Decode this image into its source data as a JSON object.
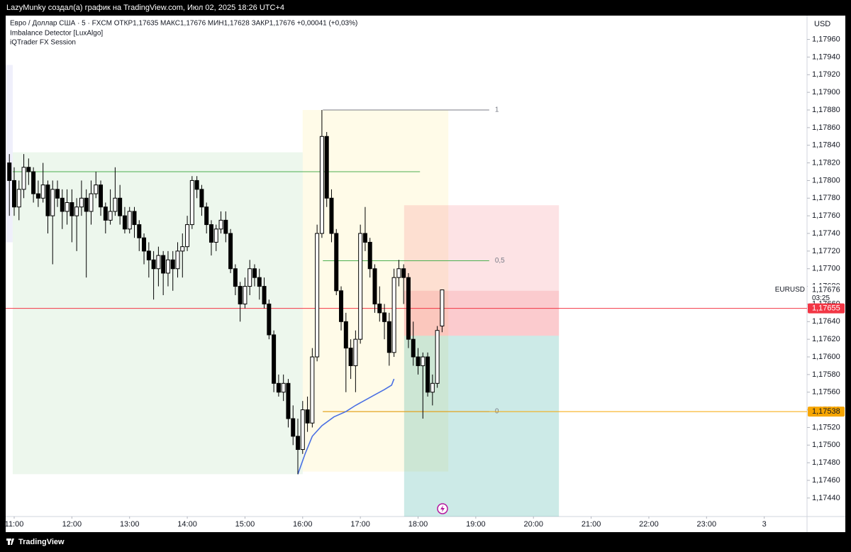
{
  "top_bar": "LazyMunky создал(а) график на TradingView.com, Июл 02, 2025 18:26 UTC+4",
  "footer": "TradingView",
  "chart_data": {
    "type": "candlestick",
    "symbol_line": "Евро / Доллар США · 5 · FXCM  ОТКР1,17635  МАКС1,17676  МИН1,17628  ЗАКР1,17676  +0,00041 (+0,03%)",
    "indicators": [
      "Imbalance Detector [LuxAlgo]",
      "iQTrader FX Session"
    ],
    "currency": "USD",
    "grid": false,
    "up_color": "#ffffff",
    "down_color": "#000000",
    "wick_color": "#000000",
    "xlim": [
      -1.77,
      164.9
    ],
    "xticks": [
      {
        "value": 0,
        "label": "11:00"
      },
      {
        "value": 12,
        "label": "12:00"
      },
      {
        "value": 24,
        "label": "13:00"
      },
      {
        "value": 36,
        "label": "14:00"
      },
      {
        "value": 48,
        "label": "15:00"
      },
      {
        "value": 60,
        "label": "16:00"
      },
      {
        "value": 72,
        "label": "17:00"
      },
      {
        "value": 84,
        "label": "18:00"
      },
      {
        "value": 96,
        "label": "19:00"
      },
      {
        "value": 108,
        "label": "20:00"
      },
      {
        "value": 120,
        "label": "21:00"
      },
      {
        "value": 132,
        "label": "22:00"
      },
      {
        "value": 144,
        "label": "23:00"
      },
      {
        "value": 156,
        "label": "3"
      }
    ],
    "ylim": [
      1.17419,
      1.17987
    ],
    "yticks": [
      {
        "value": 1.1744,
        "label": "1,17440"
      },
      {
        "value": 1.1746,
        "label": "1,17460"
      },
      {
        "value": 1.1748,
        "label": "1,17480"
      },
      {
        "value": 1.175,
        "label": "1,17500"
      },
      {
        "value": 1.1752,
        "label": "1,17520"
      },
      {
        "value": 1.1754,
        "label": "1,17540"
      },
      {
        "value": 1.1756,
        "label": "1,17560"
      },
      {
        "value": 1.1758,
        "label": "1,17580"
      },
      {
        "value": 1.176,
        "label": "1,17600"
      },
      {
        "value": 1.1762,
        "label": "1,17620"
      },
      {
        "value": 1.1764,
        "label": "1,17640"
      },
      {
        "value": 1.1766,
        "label": "1,17660"
      },
      {
        "value": 1.1768,
        "label": "1,17680"
      },
      {
        "value": 1.177,
        "label": "1,17700"
      },
      {
        "value": 1.1772,
        "label": "1,17720"
      },
      {
        "value": 1.1774,
        "label": "1,17740"
      },
      {
        "value": 1.1776,
        "label": "1,17760"
      },
      {
        "value": 1.1778,
        "label": "1,17780"
      },
      {
        "value": 1.178,
        "label": "1,17800"
      },
      {
        "value": 1.1782,
        "label": "1,17820"
      },
      {
        "value": 1.1784,
        "label": "1,17840"
      },
      {
        "value": 1.1786,
        "label": "1,17860"
      },
      {
        "value": 1.1788,
        "label": "1,17880"
      },
      {
        "value": 1.179,
        "label": "1,17900"
      },
      {
        "value": 1.1792,
        "label": "1,17920"
      },
      {
        "value": 1.1794,
        "label": "1,17940"
      },
      {
        "value": 1.1796,
        "label": "1,17960"
      }
    ],
    "boxes": [
      {
        "x": [
          -1.77,
          -0.3
        ],
        "y": [
          1.1773,
          1.17931
        ],
        "color": "rgba(120,123,220,0.12)"
      },
      {
        "x": [
          -0.3,
          60
        ],
        "y": [
          1.17467,
          1.17832
        ],
        "color": "rgba(76,175,80,0.1)"
      },
      {
        "x": [
          60,
          90.3
        ],
        "y": [
          1.1747,
          1.1788
        ],
        "color": "rgba(255,235,130,0.18)"
      },
      {
        "x": [
          81.1,
          113.3
        ],
        "y": [
          1.17624,
          1.17772
        ],
        "color": "rgba(242,54,69,0.14)"
      },
      {
        "x": [
          81.1,
          113.3
        ],
        "y": [
          1.17624,
          1.17675
        ],
        "color": "rgba(242,54,69,0.14)"
      },
      {
        "x": [
          81.1,
          113.3
        ],
        "y": [
          1.17419,
          1.17624
        ],
        "color": "rgba(0,150,136,0.2)"
      }
    ],
    "lines": [
      {
        "x": [
          -0.3,
          84.4
        ],
        "value": 1.1781,
        "color": "#4caf50"
      },
      {
        "x": [
          64.2,
          98.8
        ],
        "value": 1.1788,
        "color": "#787b86",
        "label": "1"
      },
      {
        "x": [
          64.2,
          98.8
        ],
        "value": 1.17709,
        "color": "#4caf50",
        "label": "0,5"
      },
      {
        "x": [
          64.2,
          98.8
        ],
        "value": 1.17538,
        "color": "#787b86",
        "label": "0"
      },
      {
        "x": [
          -1.77,
          164.9
        ],
        "value": 1.17655,
        "color": "#f23645"
      },
      {
        "x": [
          64.2,
          164.9
        ],
        "value": 1.17538,
        "color": "#f7a600"
      }
    ],
    "vwap": {
      "color": "#4a6fe3",
      "x": [
        59,
        60.5,
        62,
        64,
        66.5,
        69,
        71,
        73,
        75,
        77,
        78.5,
        79
      ],
      "values": [
        1.17467,
        1.1749,
        1.1751,
        1.17522,
        1.17532,
        1.17538,
        1.17545,
        1.17551,
        1.17557,
        1.17563,
        1.17568,
        1.17575
      ]
    },
    "price_labels": [
      {
        "value": 1.17676,
        "label": "1,17676",
        "name": "EURUSD",
        "timer": "03:25",
        "color": "#ffffff",
        "text_color": "#131722"
      },
      {
        "value": 1.17655,
        "label": "1,17655",
        "color": "#f23645",
        "text_color": "#ffffff"
      },
      {
        "value": 1.17538,
        "label": "1,17538",
        "color": "#f7a600",
        "text_color": "#131722"
      }
    ],
    "x": [
      -1,
      0,
      1,
      2,
      3,
      4,
      5,
      6,
      7,
      8,
      9,
      10,
      11,
      12,
      13,
      14,
      15,
      16,
      17,
      18,
      19,
      20,
      21,
      22,
      23,
      24,
      25,
      26,
      27,
      28,
      29,
      30,
      31,
      32,
      33,
      34,
      35,
      36,
      37,
      38,
      39,
      40,
      41,
      42,
      43,
      44,
      45,
      46,
      47,
      48,
      49,
      50,
      51,
      52,
      53,
      54,
      55,
      56,
      57,
      58,
      59,
      60,
      61,
      62,
      63,
      64,
      65,
      66,
      67,
      68,
      69,
      70,
      71,
      72,
      73,
      74,
      75,
      76,
      77,
      78,
      79,
      80,
      81,
      82,
      83,
      84,
      85,
      86,
      87,
      88,
      89
    ],
    "candles": [
      [
        1.1782,
        1.1783,
        1.1776,
        1.178
      ],
      [
        1.178,
        1.17815,
        1.1776,
        1.1777
      ],
      [
        1.1777,
        1.178,
        1.17755,
        1.1779
      ],
      [
        1.1779,
        1.1783,
        1.1778,
        1.17815
      ],
      [
        1.17815,
        1.17825,
        1.17795,
        1.1781
      ],
      [
        1.1781,
        1.17815,
        1.17775,
        1.17785
      ],
      [
        1.17785,
        1.178,
        1.1777,
        1.1778
      ],
      [
        1.1778,
        1.1782,
        1.17775,
        1.17795
      ],
      [
        1.17795,
        1.178,
        1.1774,
        1.1776
      ],
      [
        1.1776,
        1.178,
        1.17705,
        1.1779
      ],
      [
        1.1779,
        1.178,
        1.1777,
        1.1778
      ],
      [
        1.1778,
        1.1779,
        1.17745,
        1.17765
      ],
      [
        1.17765,
        1.1779,
        1.1775,
        1.17775
      ],
      [
        1.17775,
        1.1779,
        1.1773,
        1.1776
      ],
      [
        1.1776,
        1.1778,
        1.1772,
        1.1777
      ],
      [
        1.1777,
        1.178,
        1.1776,
        1.1778
      ],
      [
        1.1778,
        1.1779,
        1.1769,
        1.17765
      ],
      [
        1.17765,
        1.178,
        1.1775,
        1.17785
      ],
      [
        1.17785,
        1.1781,
        1.1778,
        1.17795
      ],
      [
        1.17795,
        1.178,
        1.1776,
        1.1777
      ],
      [
        1.1777,
        1.17775,
        1.1774,
        1.17755
      ],
      [
        1.17755,
        1.1779,
        1.1775,
        1.17765
      ],
      [
        1.17765,
        1.17815,
        1.1776,
        1.1778
      ],
      [
        1.1778,
        1.17795,
        1.1775,
        1.1776
      ],
      [
        1.1776,
        1.1777,
        1.1774,
        1.17745
      ],
      [
        1.17745,
        1.1777,
        1.1774,
        1.17765
      ],
      [
        1.17765,
        1.1777,
        1.17735,
        1.1775
      ],
      [
        1.1775,
        1.17755,
        1.1772,
        1.17735
      ],
      [
        1.17735,
        1.1774,
        1.17705,
        1.1772
      ],
      [
        1.1772,
        1.1773,
        1.1769,
        1.1771
      ],
      [
        1.1771,
        1.1772,
        1.17665,
        1.177
      ],
      [
        1.177,
        1.17725,
        1.1768,
        1.17715
      ],
      [
        1.17715,
        1.1772,
        1.1767,
        1.17695
      ],
      [
        1.17695,
        1.1772,
        1.1768,
        1.1771
      ],
      [
        1.1771,
        1.1772,
        1.17675,
        1.177
      ],
      [
        1.177,
        1.1773,
        1.1769,
        1.1772
      ],
      [
        1.1772,
        1.1774,
        1.1769,
        1.17725
      ],
      [
        1.17725,
        1.1776,
        1.1772,
        1.1775
      ],
      [
        1.1775,
        1.17805,
        1.17745,
        1.178
      ],
      [
        1.178,
        1.17805,
        1.1778,
        1.1779
      ],
      [
        1.1779,
        1.17795,
        1.1776,
        1.1777
      ],
      [
        1.1777,
        1.17775,
        1.1774,
        1.1775
      ],
      [
        1.1775,
        1.17755,
        1.17715,
        1.1773
      ],
      [
        1.1773,
        1.1775,
        1.1772,
        1.17745
      ],
      [
        1.17745,
        1.17765,
        1.1774,
        1.17755
      ],
      [
        1.17755,
        1.17765,
        1.1773,
        1.1774
      ],
      [
        1.1774,
        1.17745,
        1.17695,
        1.177
      ],
      [
        1.177,
        1.17705,
        1.1767,
        1.1768
      ],
      [
        1.1768,
        1.17685,
        1.1764,
        1.1766
      ],
      [
        1.1766,
        1.1769,
        1.17655,
        1.1768
      ],
      [
        1.1768,
        1.1771,
        1.1767,
        1.177
      ],
      [
        1.177,
        1.17705,
        1.1768,
        1.1769
      ],
      [
        1.1769,
        1.177,
        1.17665,
        1.1768
      ],
      [
        1.1768,
        1.1769,
        1.17655,
        1.1766
      ],
      [
        1.1766,
        1.17665,
        1.1762,
        1.17625
      ],
      [
        1.17625,
        1.1763,
        1.1756,
        1.1757
      ],
      [
        1.1757,
        1.1758,
        1.17555,
        1.1756
      ],
      [
        1.1756,
        1.1758,
        1.1755,
        1.1757
      ],
      [
        1.1757,
        1.17575,
        1.1752,
        1.1753
      ],
      [
        1.1753,
        1.17545,
        1.175,
        1.1751
      ],
      [
        1.1751,
        1.1753,
        1.17467,
        1.17495
      ],
      [
        1.17495,
        1.1755,
        1.1749,
        1.1754
      ],
      [
        1.1754,
        1.17555,
        1.17515,
        1.17525
      ],
      [
        1.17525,
        1.1761,
        1.1752,
        1.176
      ],
      [
        1.176,
        1.1775,
        1.17595,
        1.1774
      ],
      [
        1.1774,
        1.1788,
        1.17735,
        1.1785
      ],
      [
        1.1785,
        1.17855,
        1.1777,
        1.1778
      ],
      [
        1.1778,
        1.1779,
        1.1773,
        1.1774
      ],
      [
        1.1774,
        1.17745,
        1.1767,
        1.17675
      ],
      [
        1.17675,
        1.1768,
        1.1763,
        1.1764
      ],
      [
        1.1764,
        1.1765,
        1.1756,
        1.1761
      ],
      [
        1.1761,
        1.1762,
        1.17575,
        1.1759
      ],
      [
        1.1759,
        1.1763,
        1.1756,
        1.1762
      ],
      [
        1.1762,
        1.1775,
        1.17615,
        1.1774
      ],
      [
        1.1774,
        1.1777,
        1.1772,
        1.1773
      ],
      [
        1.1773,
        1.17735,
        1.1769,
        1.177
      ],
      [
        1.177,
        1.17705,
        1.1765,
        1.1766
      ],
      [
        1.1766,
        1.1768,
        1.1764,
        1.1765
      ],
      [
        1.1765,
        1.1766,
        1.1762,
        1.1764
      ],
      [
        1.1764,
        1.1765,
        1.1759,
        1.17605
      ],
      [
        1.17605,
        1.177,
        1.176,
        1.1769
      ],
      [
        1.1769,
        1.1771,
        1.1768,
        1.177
      ],
      [
        1.177,
        1.17705,
        1.1766,
        1.1769
      ],
      [
        1.1769,
        1.17695,
        1.1761,
        1.1762
      ],
      [
        1.1762,
        1.1764,
        1.1759,
        1.176
      ],
      [
        1.176,
        1.1761,
        1.1758,
        1.1759
      ],
      [
        1.1759,
        1.17605,
        1.1753,
        1.176
      ],
      [
        1.176,
        1.17605,
        1.17555,
        1.1756
      ],
      [
        1.1756,
        1.1758,
        1.17545,
        1.1757
      ],
      [
        1.1757,
        1.17635,
        1.17565,
        1.1763
      ],
      [
        1.17635,
        1.17676,
        1.17628,
        1.17676
      ]
    ]
  }
}
